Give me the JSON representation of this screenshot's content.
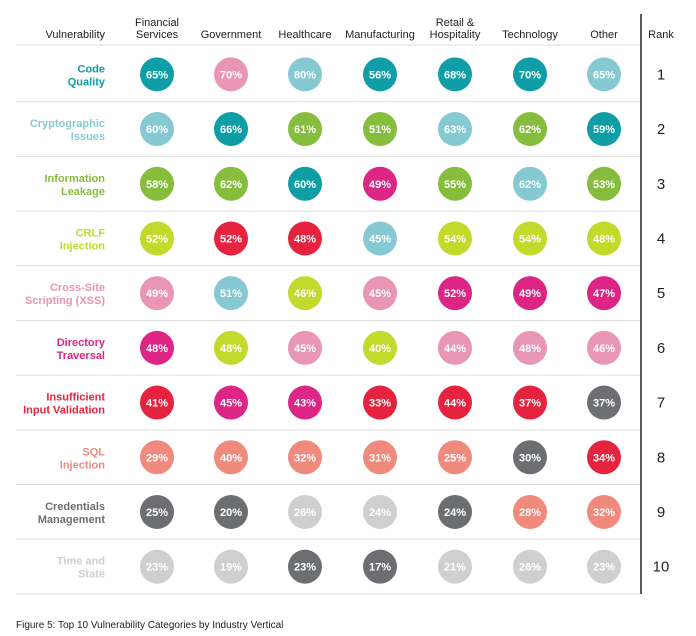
{
  "colors": {
    "teal": "#0f9ea6",
    "light_blue": "#86c9d3",
    "green": "#86bd3c",
    "lime": "#c3d92c",
    "pink": "#e895b6",
    "magenta": "#dd2585",
    "red": "#e5233e",
    "salmon": "#ef8a7d",
    "dark_gray": "#6d6e71",
    "light_gray": "#cfcfcf",
    "divider": "#dddddd",
    "rank_line": "#222222"
  },
  "chart_data": {
    "type": "table",
    "corner_header": "Vulnerability",
    "rank_header": "Rank",
    "columns": [
      [
        "Financial",
        "Services"
      ],
      [
        "Government"
      ],
      [
        "Healthcare"
      ],
      [
        "Manufacturing"
      ],
      [
        "Retail &",
        "Hospitality"
      ],
      [
        "Technology"
      ],
      [
        "Other"
      ]
    ],
    "rows": [
      {
        "label": [
          "Code",
          "Quality"
        ],
        "label_color": "teal",
        "rank": "1",
        "cells": [
          [
            "65%",
            "teal"
          ],
          [
            "70%",
            "pink"
          ],
          [
            "80%",
            "light_blue"
          ],
          [
            "56%",
            "teal"
          ],
          [
            "68%",
            "teal"
          ],
          [
            "70%",
            "teal"
          ],
          [
            "65%",
            "light_blue"
          ]
        ]
      },
      {
        "label": [
          "Cryptographic",
          "Issues"
        ],
        "label_color": "light_blue",
        "rank": "2",
        "cells": [
          [
            "60%",
            "light_blue"
          ],
          [
            "66%",
            "teal"
          ],
          [
            "61%",
            "green"
          ],
          [
            "51%",
            "green"
          ],
          [
            "63%",
            "light_blue"
          ],
          [
            "62%",
            "green"
          ],
          [
            "59%",
            "teal"
          ]
        ]
      },
      {
        "label": [
          "Information",
          "Leakage"
        ],
        "label_color": "green",
        "rank": "3",
        "cells": [
          [
            "58%",
            "green"
          ],
          [
            "62%",
            "green"
          ],
          [
            "60%",
            "teal"
          ],
          [
            "49%",
            "magenta"
          ],
          [
            "55%",
            "green"
          ],
          [
            "62%",
            "light_blue"
          ],
          [
            "53%",
            "green"
          ]
        ]
      },
      {
        "label": [
          "CRLF",
          "Injection"
        ],
        "label_color": "lime",
        "rank": "4",
        "cells": [
          [
            "52%",
            "lime"
          ],
          [
            "52%",
            "red"
          ],
          [
            "48%",
            "red"
          ],
          [
            "45%",
            "light_blue"
          ],
          [
            "54%",
            "lime"
          ],
          [
            "54%",
            "lime"
          ],
          [
            "48%",
            "lime"
          ]
        ]
      },
      {
        "label": [
          "Cross-Site",
          "Scripting (XSS)"
        ],
        "label_color": "pink",
        "rank": "5",
        "cells": [
          [
            "49%",
            "pink"
          ],
          [
            "51%",
            "light_blue"
          ],
          [
            "46%",
            "lime"
          ],
          [
            "45%",
            "pink"
          ],
          [
            "52%",
            "magenta"
          ],
          [
            "49%",
            "magenta"
          ],
          [
            "47%",
            "magenta"
          ]
        ]
      },
      {
        "label": [
          "Directory",
          "Traversal"
        ],
        "label_color": "magenta",
        "rank": "6",
        "cells": [
          [
            "48%",
            "magenta"
          ],
          [
            "48%",
            "lime"
          ],
          [
            "45%",
            "pink"
          ],
          [
            "40%",
            "lime"
          ],
          [
            "44%",
            "pink"
          ],
          [
            "48%",
            "pink"
          ],
          [
            "46%",
            "pink"
          ]
        ]
      },
      {
        "label": [
          "Insufficient",
          "Input Validation"
        ],
        "label_color": "red",
        "rank": "7",
        "cells": [
          [
            "41%",
            "red"
          ],
          [
            "45%",
            "magenta"
          ],
          [
            "43%",
            "magenta"
          ],
          [
            "33%",
            "red"
          ],
          [
            "44%",
            "red"
          ],
          [
            "37%",
            "red"
          ],
          [
            "37%",
            "dark_gray"
          ]
        ]
      },
      {
        "label": [
          "SQL",
          "Injection"
        ],
        "label_color": "salmon",
        "rank": "8",
        "cells": [
          [
            "29%",
            "salmon"
          ],
          [
            "40%",
            "salmon"
          ],
          [
            "32%",
            "salmon"
          ],
          [
            "31%",
            "salmon"
          ],
          [
            "25%",
            "salmon"
          ],
          [
            "30%",
            "dark_gray"
          ],
          [
            "34%",
            "red"
          ]
        ]
      },
      {
        "label": [
          "Credentials",
          "Management"
        ],
        "label_color": "dark_gray",
        "rank": "9",
        "cells": [
          [
            "25%",
            "dark_gray"
          ],
          [
            "20%",
            "dark_gray"
          ],
          [
            "26%",
            "light_gray"
          ],
          [
            "24%",
            "light_gray"
          ],
          [
            "24%",
            "dark_gray"
          ],
          [
            "28%",
            "salmon"
          ],
          [
            "32%",
            "salmon"
          ]
        ]
      },
      {
        "label": [
          "Time and",
          "State"
        ],
        "label_color": "light_gray",
        "rank": "10",
        "cells": [
          [
            "23%",
            "light_gray"
          ],
          [
            "19%",
            "light_gray"
          ],
          [
            "23%",
            "dark_gray"
          ],
          [
            "17%",
            "dark_gray"
          ],
          [
            "21%",
            "light_gray"
          ],
          [
            "26%",
            "light_gray"
          ],
          [
            "23%",
            "light_gray"
          ]
        ]
      }
    ]
  },
  "caption": "Figure 5: Top 10 Vulnerability Categories by Industry Vertical"
}
